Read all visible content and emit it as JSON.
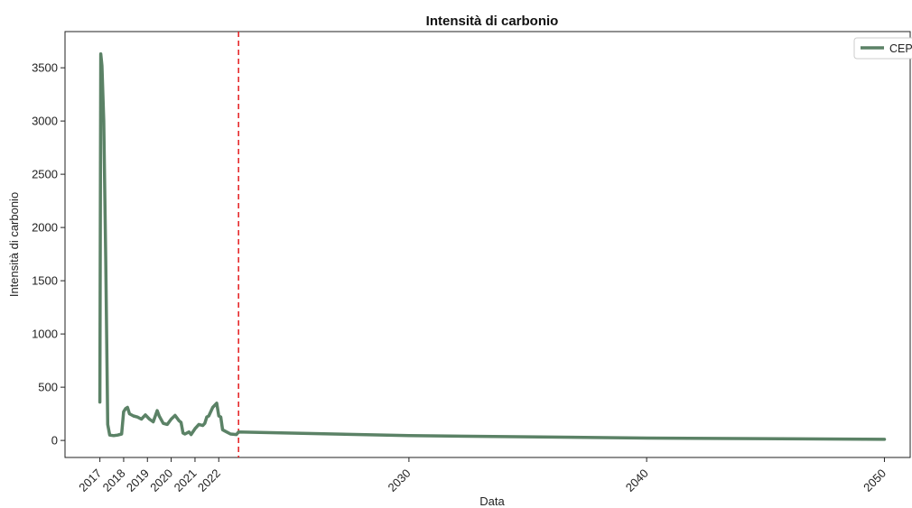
{
  "chart_data": {
    "type": "line",
    "title": "Intensità di carbonio",
    "xlabel": "Data",
    "ylabel": "Intensità di carbonio",
    "ylim": [
      -160,
      3840
    ],
    "xlim": [
      "2015-07-15",
      "2051-02-01"
    ],
    "yticks": [
      0,
      500,
      1000,
      1500,
      2000,
      2500,
      3000,
      3500
    ],
    "xticks": [
      {
        "label": "2017",
        "date": "2017-01-01"
      },
      {
        "label": "2018",
        "date": "2018-01-01"
      },
      {
        "label": "2019",
        "date": "2019-01-01"
      },
      {
        "label": "2020",
        "date": "2020-01-01"
      },
      {
        "label": "2021",
        "date": "2021-01-01"
      },
      {
        "label": "2022",
        "date": "2022-01-01"
      },
      {
        "label": "2030",
        "date": "2030-01-01"
      },
      {
        "label": "2040",
        "date": "2040-01-01"
      },
      {
        "label": "2050",
        "date": "2050-01-01"
      }
    ],
    "grid": false,
    "legend": "top-right",
    "marker_line": {
      "date": "2022-11-01",
      "color": "#e41a1c",
      "style": "dashed"
    },
    "series": [
      {
        "name": "CEP",
        "color": "#5b8266",
        "points": [
          [
            "2017-01-01",
            360
          ],
          [
            "2017-01-15",
            3630
          ],
          [
            "2017-02-01",
            3520
          ],
          [
            "2017-03-01",
            3000
          ],
          [
            "2017-04-01",
            1700
          ],
          [
            "2017-05-01",
            150
          ],
          [
            "2017-06-01",
            50
          ],
          [
            "2017-08-01",
            45
          ],
          [
            "2017-10-01",
            50
          ],
          [
            "2017-12-01",
            60
          ],
          [
            "2018-01-01",
            270
          ],
          [
            "2018-02-01",
            300
          ],
          [
            "2018-03-01",
            310
          ],
          [
            "2018-04-01",
            250
          ],
          [
            "2018-06-01",
            230
          ],
          [
            "2018-08-01",
            220
          ],
          [
            "2018-10-01",
            200
          ],
          [
            "2018-12-01",
            240
          ],
          [
            "2019-02-01",
            200
          ],
          [
            "2019-04-01",
            175
          ],
          [
            "2019-06-01",
            280
          ],
          [
            "2019-07-01",
            230
          ],
          [
            "2019-09-01",
            160
          ],
          [
            "2019-11-01",
            150
          ],
          [
            "2020-01-01",
            200
          ],
          [
            "2020-03-01",
            235
          ],
          [
            "2020-05-01",
            185
          ],
          [
            "2020-06-01",
            170
          ],
          [
            "2020-07-01",
            70
          ],
          [
            "2020-08-01",
            60
          ],
          [
            "2020-10-01",
            80
          ],
          [
            "2020-11-01",
            55
          ],
          [
            "2021-01-01",
            110
          ],
          [
            "2021-03-01",
            150
          ],
          [
            "2021-05-01",
            140
          ],
          [
            "2021-06-01",
            160
          ],
          [
            "2021-07-01",
            220
          ],
          [
            "2021-08-01",
            230
          ],
          [
            "2021-10-01",
            310
          ],
          [
            "2021-12-01",
            350
          ],
          [
            "2022-01-01",
            230
          ],
          [
            "2022-02-01",
            220
          ],
          [
            "2022-03-01",
            100
          ],
          [
            "2022-05-01",
            80
          ],
          [
            "2022-07-01",
            60
          ],
          [
            "2022-10-01",
            55
          ],
          [
            "2022-11-01",
            80
          ],
          [
            "2030-01-01",
            45
          ],
          [
            "2040-01-01",
            22
          ],
          [
            "2050-01-01",
            10
          ]
        ]
      }
    ]
  }
}
